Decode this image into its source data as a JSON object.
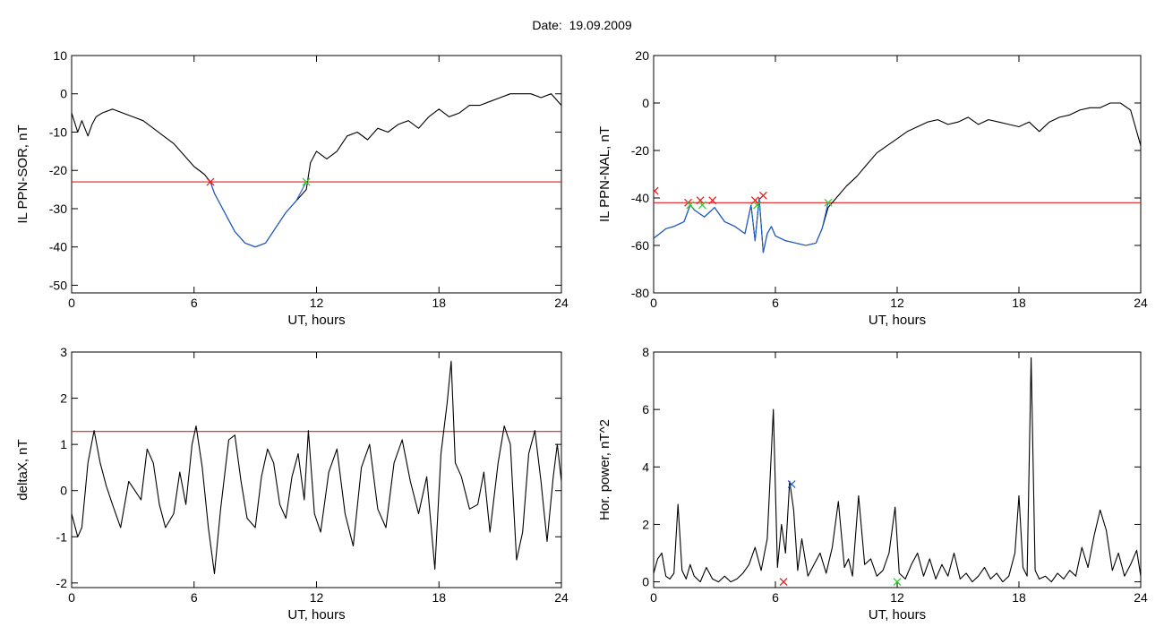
{
  "page": {
    "title": "Date:  19.09.2009"
  },
  "colors": {
    "trace": "#000000",
    "threshold": "#e02020",
    "segment": "#1f5fd0",
    "start_marker": "#e02020",
    "end_marker": "#33cc33",
    "peak_marker": "#1f5fd0"
  },
  "chart_data": [
    {
      "type": "line",
      "title": "",
      "xlabel": "UT, hours",
      "ylabel": "IL PPN-SOR, nT",
      "xlim": [
        0,
        24
      ],
      "ylim": [
        -52,
        10
      ],
      "xticks": [
        "0",
        "6",
        "12",
        "18",
        "24"
      ],
      "yticks": [
        "10",
        "0",
        "-10",
        "-20",
        "-30",
        "-40",
        "-50"
      ],
      "ytick_values": [
        10,
        0,
        -10,
        -20,
        -30,
        -40,
        -50
      ],
      "threshold": -23,
      "series": [
        {
          "role": "trace",
          "x": [
            0,
            0.3,
            0.5,
            0.8,
            1.0,
            1.2,
            1.5,
            2.0,
            3.0,
            3.5,
            4.0,
            4.5,
            5.0,
            5.5,
            6.0,
            6.5,
            6.8,
            7.0,
            7.5,
            8.0,
            8.5,
            9.0,
            9.5,
            10.0,
            10.5,
            11.0,
            11.5,
            11.7,
            12.0,
            12.5,
            13.0,
            13.5,
            14.0,
            14.5,
            15.0,
            15.5,
            16.0,
            16.5,
            17.0,
            17.5,
            18.0,
            18.5,
            19.0,
            19.5,
            20.0,
            20.5,
            21.0,
            21.5,
            22.0,
            22.5,
            23.0,
            23.5,
            24.0
          ],
          "y": [
            -5,
            -10,
            -7,
            -11,
            -8,
            -6,
            -5,
            -4,
            -6,
            -7,
            -9,
            -11,
            -13,
            -16,
            -19,
            -21,
            -23,
            -26,
            -31,
            -36,
            -39,
            -40,
            -39,
            -35,
            -31,
            -28,
            -25,
            -18,
            -15,
            -17,
            -15,
            -11,
            -10,
            -12,
            -9,
            -10,
            -8,
            -7,
            -9,
            -6,
            -4,
            -6,
            -5,
            -3,
            -3,
            -2,
            -1,
            0,
            0,
            0,
            -1,
            0,
            -3
          ]
        },
        {
          "role": "segment",
          "x": [
            6.8,
            7.0,
            7.5,
            8.0,
            8.5,
            9.0,
            9.5,
            10.0,
            10.5,
            11.0,
            11.5
          ],
          "y": [
            -23,
            -26,
            -31,
            -36,
            -39,
            -40,
            -39,
            -35,
            -31,
            -28,
            -23
          ]
        }
      ],
      "markers": [
        {
          "x": 6.8,
          "y": -23,
          "kind": "start"
        },
        {
          "x": 11.5,
          "y": -23,
          "kind": "end"
        }
      ]
    },
    {
      "type": "line",
      "title": "",
      "xlabel": "UT, hours",
      "ylabel": "IL PPN-NAL, nT",
      "xlim": [
        0,
        24
      ],
      "ylim": [
        -80,
        20
      ],
      "xticks": [
        "0",
        "6",
        "12",
        "18",
        "24"
      ],
      "yticks": [
        "20",
        "0",
        "-20",
        "-40",
        "-60",
        "-80"
      ],
      "ytick_values": [
        20,
        0,
        -20,
        -40,
        -60,
        -80
      ],
      "threshold": -42,
      "series": [
        {
          "role": "trace",
          "x": [
            0,
            0.3,
            0.6,
            1.0,
            1.5,
            1.8,
            2.0,
            2.5,
            3.0,
            3.5,
            4.0,
            4.5,
            4.8,
            5.0,
            5.2,
            5.4,
            5.6,
            5.8,
            6.0,
            6.5,
            7.0,
            7.5,
            8.0,
            8.3,
            8.6,
            9.0,
            9.5,
            10.0,
            10.5,
            11.0,
            11.5,
            12.0,
            12.5,
            13.0,
            13.5,
            14.0,
            14.5,
            15.0,
            15.5,
            16.0,
            16.5,
            17.0,
            17.5,
            18.0,
            18.5,
            19.0,
            19.5,
            20.0,
            20.5,
            21.0,
            21.5,
            22.0,
            22.5,
            23.0,
            23.5,
            24.0
          ],
          "y": [
            -57,
            -55,
            -53,
            -52,
            -50,
            -43,
            -45,
            -48,
            -44,
            -50,
            -52,
            -55,
            -43,
            -58,
            -40,
            -63,
            -55,
            -52,
            -56,
            -58,
            -59,
            -60,
            -59,
            -53,
            -44,
            -40,
            -35,
            -31,
            -26,
            -21,
            -18,
            -15,
            -12,
            -10,
            -8,
            -7,
            -9,
            -8,
            -6,
            -9,
            -7,
            -8,
            -9,
            -10,
            -8,
            -12,
            -8,
            -6,
            -5,
            -3,
            -2,
            -2,
            0,
            0,
            -3,
            -18
          ]
        },
        {
          "role": "segment",
          "x": [
            0,
            0.3,
            0.6,
            1.0,
            1.5,
            1.8,
            2.0,
            2.5,
            3.0,
            3.5,
            4.0,
            4.5,
            4.8,
            5.0,
            5.2,
            5.4,
            5.6,
            5.8,
            6.0,
            6.5,
            7.0,
            7.5,
            8.0,
            8.3,
            8.6
          ],
          "y": [
            -57,
            -55,
            -53,
            -52,
            -50,
            -43,
            -45,
            -48,
            -44,
            -50,
            -52,
            -55,
            -43,
            -58,
            -40,
            -63,
            -55,
            -52,
            -56,
            -58,
            -59,
            -60,
            -59,
            -53,
            -42
          ]
        }
      ],
      "markers": [
        {
          "x": 0.05,
          "y": -37,
          "kind": "start"
        },
        {
          "x": 1.7,
          "y": -42,
          "kind": "start"
        },
        {
          "x": 2.3,
          "y": -41,
          "kind": "start"
        },
        {
          "x": 2.9,
          "y": -41,
          "kind": "start"
        },
        {
          "x": 5.0,
          "y": -41,
          "kind": "start"
        },
        {
          "x": 5.4,
          "y": -39,
          "kind": "start"
        },
        {
          "x": 1.8,
          "y": -43,
          "kind": "end"
        },
        {
          "x": 2.4,
          "y": -43,
          "kind": "end"
        },
        {
          "x": 5.1,
          "y": -43,
          "kind": "end"
        },
        {
          "x": 8.6,
          "y": -42,
          "kind": "end"
        }
      ]
    },
    {
      "type": "line",
      "title": "",
      "xlabel": "UT, hours",
      "ylabel": "deltaX, nT",
      "xlim": [
        0,
        24
      ],
      "ylim": [
        -2.1,
        3.0
      ],
      "xticks": [
        "0",
        "6",
        "12",
        "18",
        "24"
      ],
      "yticks": [
        "3",
        "2",
        "1",
        "0",
        "-1",
        "-2"
      ],
      "ytick_values": [
        3,
        2,
        1,
        0,
        -1,
        -2
      ],
      "threshold": 1.28,
      "series": [
        {
          "role": "trace",
          "x": [
            0,
            0.3,
            0.5,
            0.8,
            1.1,
            1.4,
            1.7,
            2.0,
            2.4,
            2.8,
            3.1,
            3.4,
            3.7,
            4.0,
            4.3,
            4.6,
            5.0,
            5.3,
            5.6,
            5.9,
            6.1,
            6.4,
            6.7,
            7.0,
            7.3,
            7.7,
            8.0,
            8.3,
            8.6,
            9.0,
            9.3,
            9.6,
            9.9,
            10.2,
            10.5,
            10.8,
            11.1,
            11.4,
            11.6,
            11.9,
            12.2,
            12.6,
            13.0,
            13.4,
            13.8,
            14.2,
            14.6,
            15.0,
            15.4,
            15.8,
            16.2,
            16.6,
            17.0,
            17.4,
            17.8,
            18.1,
            18.4,
            18.6,
            18.8,
            19.1,
            19.5,
            19.9,
            20.2,
            20.5,
            20.9,
            21.2,
            21.5,
            21.8,
            22.1,
            22.4,
            22.7,
            23.0,
            23.3,
            23.6,
            23.8,
            24.0
          ],
          "y": [
            -0.5,
            -1.0,
            -0.8,
            0.6,
            1.3,
            0.6,
            0.1,
            -0.3,
            -0.8,
            0.2,
            0.0,
            -0.2,
            0.9,
            0.6,
            -0.3,
            -0.8,
            -0.5,
            0.4,
            -0.3,
            1.0,
            1.4,
            0.5,
            -0.8,
            -1.8,
            -0.4,
            1.1,
            1.2,
            0.2,
            -0.6,
            -0.8,
            0.3,
            0.9,
            0.6,
            -0.3,
            -0.6,
            0.3,
            0.8,
            -0.2,
            1.3,
            -0.5,
            -0.9,
            0.4,
            0.9,
            -0.5,
            -1.2,
            0.5,
            1.0,
            -0.4,
            -0.8,
            0.6,
            1.1,
            0.2,
            -0.5,
            0.3,
            -1.7,
            0.8,
            1.9,
            2.8,
            0.6,
            0.3,
            -0.4,
            -0.3,
            0.4,
            -0.9,
            0.6,
            1.4,
            1.0,
            -1.5,
            -0.9,
            0.8,
            1.3,
            0.2,
            -1.1,
            0.3,
            1.0,
            0.2
          ]
        }
      ],
      "markers": []
    },
    {
      "type": "line",
      "title": "",
      "xlabel": "UT, hours",
      "ylabel": "Hor. power, nT^2",
      "xlim": [
        0,
        24
      ],
      "ylim": [
        -0.2,
        8.0
      ],
      "xticks": [
        "0",
        "6",
        "12",
        "18",
        "24"
      ],
      "yticks": [
        "8",
        "6",
        "4",
        "2",
        "0"
      ],
      "ytick_values": [
        8,
        6,
        4,
        2,
        0
      ],
      "threshold": null,
      "series": [
        {
          "role": "trace",
          "x": [
            0,
            0.2,
            0.4,
            0.6,
            0.8,
            1.0,
            1.2,
            1.4,
            1.6,
            1.8,
            2.0,
            2.3,
            2.6,
            2.9,
            3.2,
            3.5,
            3.8,
            4.1,
            4.4,
            4.7,
            5.0,
            5.3,
            5.6,
            5.9,
            6.1,
            6.3,
            6.5,
            6.7,
            6.9,
            7.1,
            7.3,
            7.6,
            7.9,
            8.2,
            8.5,
            8.8,
            9.1,
            9.4,
            9.6,
            9.8,
            10.1,
            10.4,
            10.7,
            11.0,
            11.3,
            11.6,
            11.9,
            12.1,
            12.4,
            12.7,
            13.0,
            13.3,
            13.6,
            13.9,
            14.2,
            14.5,
            14.8,
            15.1,
            15.4,
            15.7,
            16.0,
            16.3,
            16.6,
            16.9,
            17.2,
            17.5,
            17.8,
            18.0,
            18.2,
            18.4,
            18.6,
            18.8,
            19.0,
            19.3,
            19.6,
            19.9,
            20.2,
            20.5,
            20.8,
            21.1,
            21.4,
            21.7,
            22.0,
            22.3,
            22.6,
            22.9,
            23.2,
            23.5,
            23.8,
            24.0
          ],
          "y": [
            0.3,
            0.8,
            1.0,
            0.2,
            0.1,
            0.3,
            2.7,
            0.4,
            0.1,
            0.6,
            0.2,
            0.0,
            0.5,
            0.1,
            0.0,
            0.2,
            0.0,
            0.1,
            0.3,
            0.6,
            1.2,
            0.4,
            1.5,
            6.0,
            0.5,
            2.0,
            1.0,
            3.5,
            2.5,
            0.4,
            1.5,
            0.2,
            0.6,
            1.0,
            0.3,
            1.2,
            2.8,
            0.5,
            0.8,
            0.2,
            3.0,
            0.6,
            0.8,
            0.2,
            0.4,
            1.0,
            2.6,
            0.3,
            0.1,
            0.6,
            1.0,
            0.2,
            0.8,
            0.1,
            0.6,
            0.2,
            1.0,
            0.1,
            0.3,
            0.0,
            0.2,
            0.5,
            0.1,
            0.3,
            0.0,
            0.2,
            1.0,
            3.0,
            0.5,
            0.2,
            7.8,
            0.4,
            0.1,
            0.2,
            0.0,
            0.3,
            0.1,
            0.4,
            0.2,
            1.2,
            0.5,
            1.6,
            2.5,
            1.8,
            0.4,
            1.0,
            0.2,
            0.6,
            1.1,
            0.2
          ]
        }
      ],
      "markers": [
        {
          "x": 6.8,
          "y": 3.4,
          "kind": "peak"
        },
        {
          "x": 6.4,
          "y": 0.0,
          "kind": "start"
        },
        {
          "x": 12.0,
          "y": 0.0,
          "kind": "end"
        }
      ]
    }
  ]
}
